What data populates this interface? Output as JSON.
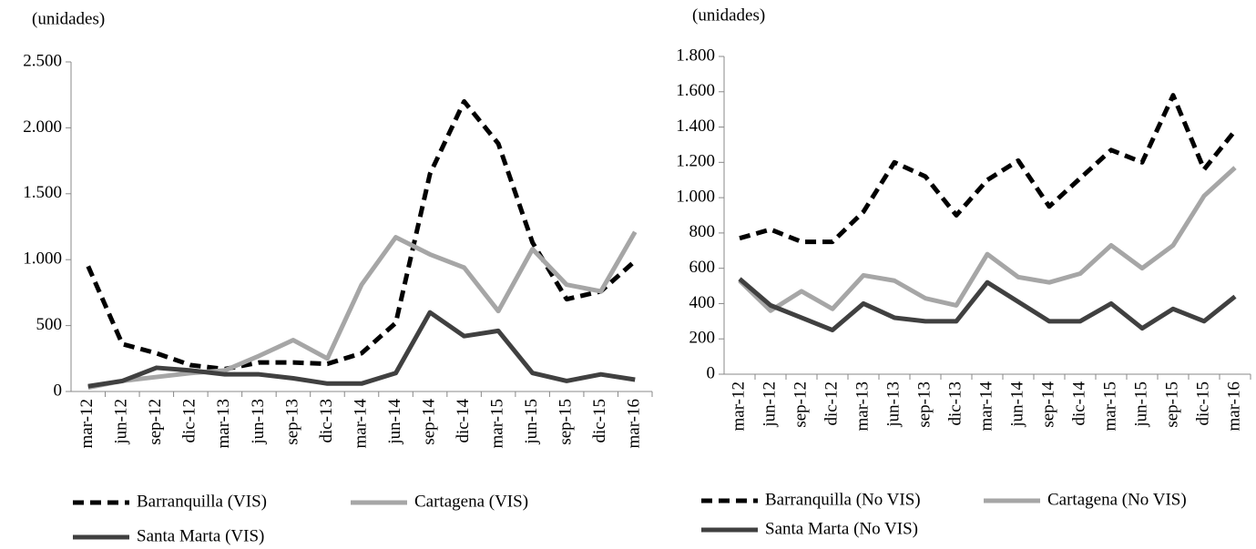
{
  "chart_data": [
    {
      "type": "line",
      "y_label": "(unidades)",
      "categories": [
        "mar-12",
        "jun-12",
        "sep-12",
        "dic-12",
        "mar-13",
        "jun-13",
        "sep-13",
        "dic-13",
        "mar-14",
        "jun-14",
        "sep-14",
        "dic-14",
        "mar-15",
        "jun-15",
        "sep-15",
        "dic-15",
        "mar-16"
      ],
      "ylim": [
        0,
        2500
      ],
      "yticks": [
        0,
        500,
        {
          "value": 1000,
          "label": "1.000"
        },
        {
          "value": 1500,
          "label": "1.500"
        },
        {
          "value": 2000,
          "label": "2.000"
        },
        {
          "value": 2500,
          "label": "2.500"
        }
      ],
      "series": [
        {
          "name": "Barranquilla (VIS)",
          "color": "#000000",
          "dashed": true,
          "values": [
            950,
            360,
            290,
            200,
            170,
            220,
            220,
            210,
            290,
            520,
            1650,
            2200,
            1880,
            1130,
            700,
            760,
            990
          ]
        },
        {
          "name": "Cartagena (VIS)",
          "color": "#a6a6a6",
          "dashed": false,
          "values": [
            30,
            80,
            110,
            140,
            160,
            270,
            390,
            250,
            810,
            1170,
            1040,
            940,
            610,
            1080,
            810,
            760,
            1210
          ]
        },
        {
          "name": "Santa Marta (VIS)",
          "color": "#404040",
          "dashed": false,
          "values": [
            40,
            80,
            180,
            160,
            130,
            130,
            100,
            60,
            60,
            140,
            600,
            420,
            460,
            140,
            80,
            130,
            90
          ]
        }
      ]
    },
    {
      "type": "line",
      "y_label": "(unidades)",
      "categories": [
        "mar-12",
        "jun-12",
        "sep-12",
        "dic-12",
        "mar-13",
        "jun-13",
        "sep-13",
        "dic-13",
        "mar-14",
        "jun-14",
        "sep-14",
        "dic-14",
        "mar-15",
        "jun-15",
        "sep-15",
        "dic-15",
        "mar-16"
      ],
      "ylim": [
        0,
        1800
      ],
      "yticks": [
        0,
        200,
        400,
        600,
        800,
        {
          "value": 1000,
          "label": "1.000"
        },
        {
          "value": 1200,
          "label": "1.200"
        },
        {
          "value": 1400,
          "label": "1.400"
        },
        {
          "value": 1600,
          "label": "1.600"
        },
        {
          "value": 1800,
          "label": "1.800"
        }
      ],
      "series": [
        {
          "name": "Barranquilla (No VIS)",
          "color": "#000000",
          "dashed": true,
          "values": [
            770,
            820,
            750,
            750,
            920,
            1200,
            1120,
            900,
            1100,
            1210,
            950,
            1110,
            1270,
            1200,
            1580,
            1160,
            1380
          ]
        },
        {
          "name": "Cartagena (No VIS)",
          "color": "#a6a6a6",
          "dashed": false,
          "values": [
            530,
            360,
            470,
            370,
            560,
            530,
            430,
            390,
            680,
            550,
            520,
            570,
            730,
            600,
            730,
            1010,
            1170
          ]
        },
        {
          "name": "Santa Marta (No VIS)",
          "color": "#404040",
          "dashed": false,
          "values": [
            540,
            390,
            320,
            250,
            400,
            320,
            300,
            300,
            520,
            410,
            300,
            300,
            400,
            260,
            370,
            300,
            440
          ]
        }
      ]
    }
  ]
}
